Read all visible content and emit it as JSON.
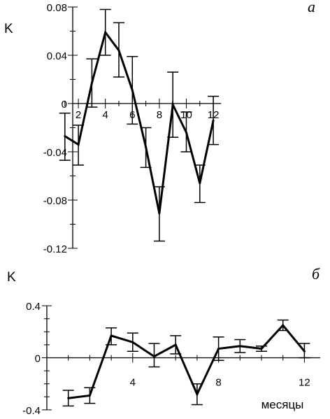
{
  "chart_data": [
    {
      "type": "line",
      "panel_label": "а",
      "ylabel": "K",
      "xlabel": "",
      "x": [
        1,
        2,
        3,
        4,
        5,
        6,
        7,
        8,
        9,
        10,
        11,
        12
      ],
      "series": [
        {
          "values": [
            -0.027,
            -0.034,
            0.017,
            0.059,
            0.044,
            0.011,
            -0.036,
            -0.091,
            -0.001,
            -0.024,
            -0.066,
            -0.014
          ],
          "err_low": [
            -0.047,
            -0.051,
            -0.003,
            0.04,
            0.022,
            -0.017,
            -0.053,
            -0.114,
            -0.028,
            -0.04,
            -0.082,
            -0.034
          ],
          "err_high": [
            -0.008,
            -0.018,
            0.037,
            0.078,
            0.067,
            0.039,
            -0.02,
            -0.069,
            0.026,
            -0.007,
            -0.051,
            0.006
          ]
        }
      ],
      "ylim": [
        -0.12,
        0.08
      ],
      "xlim": [
        0,
        13
      ],
      "yticks": [
        0.08,
        0.04,
        0,
        -0.04,
        -0.08,
        -0.12
      ],
      "ytick_labels": [
        "0.08",
        "0.04",
        "0",
        "-0.04",
        "-0.08",
        "-0.12"
      ],
      "xticks": [
        2,
        4,
        6,
        8,
        10,
        12
      ],
      "xtick_labels": [
        "2",
        "4",
        "6",
        "8",
        "10",
        "12"
      ],
      "grid": false
    },
    {
      "type": "line",
      "panel_label": "б",
      "ylabel": "K",
      "xlabel": "месяцы",
      "x": [
        1,
        2,
        3,
        4,
        5,
        6,
        7,
        8,
        9,
        10,
        11,
        12
      ],
      "series": [
        {
          "values": [
            -0.31,
            -0.29,
            0.17,
            0.12,
            0.01,
            0.1,
            -0.28,
            0.07,
            0.09,
            0.07,
            0.25,
            0.05
          ],
          "err_low": [
            -0.37,
            -0.35,
            0.1,
            0.05,
            -0.07,
            0.03,
            -0.36,
            -0.02,
            0.04,
            0.05,
            0.21,
            0.0
          ],
          "err_high": [
            -0.25,
            -0.23,
            0.23,
            0.19,
            0.11,
            0.17,
            -0.2,
            0.16,
            0.14,
            0.09,
            0.29,
            0.11
          ]
        }
      ],
      "ylim": [
        -0.4,
        0.4
      ],
      "xlim": [
        0,
        13
      ],
      "yticks": [
        0.4,
        0,
        -0.4
      ],
      "ytick_labels": [
        "0.4",
        "0",
        "-0.4"
      ],
      "xticks": [
        4,
        8,
        12
      ],
      "xtick_labels": [
        "4",
        "8",
        "12"
      ],
      "grid": false
    }
  ]
}
